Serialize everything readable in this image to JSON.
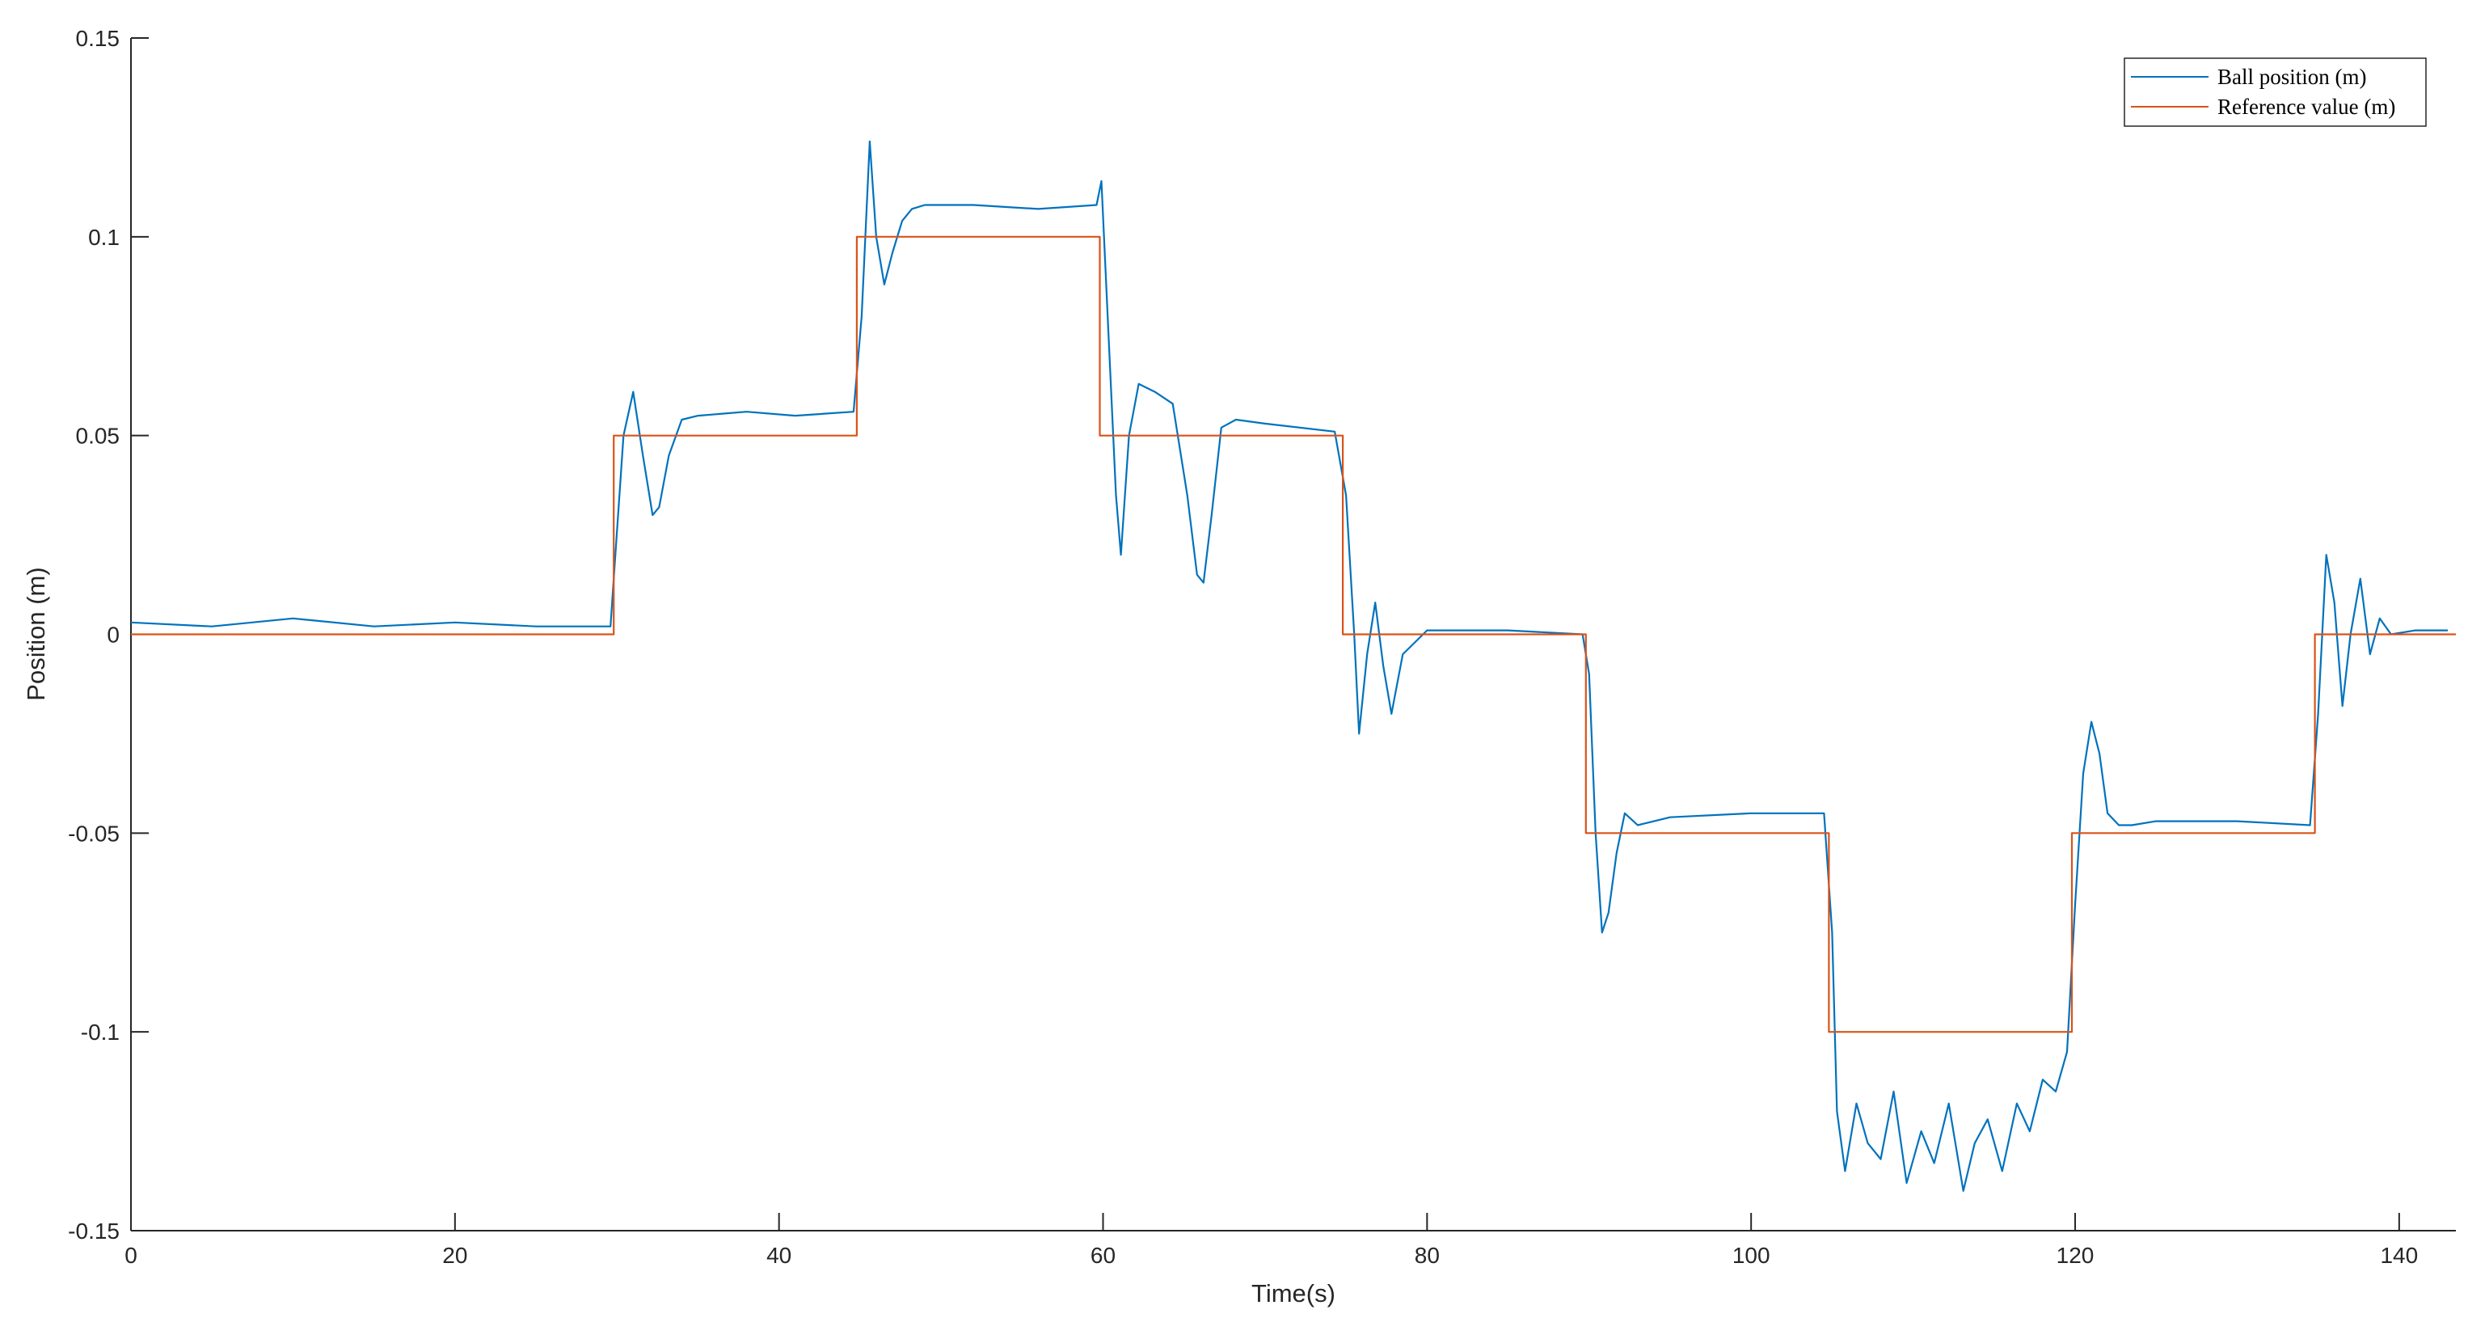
{
  "chart_data": {
    "type": "line",
    "xlabel": "Time(s)",
    "ylabel": "Position (m)",
    "xlim": [
      0,
      143.5
    ],
    "ylim": [
      -0.15,
      0.15
    ],
    "xticks": [
      0,
      20,
      40,
      60,
      80,
      100,
      120,
      140
    ],
    "yticks": [
      -0.15,
      -0.1,
      -0.05,
      0,
      0.05,
      0.1,
      0.15
    ],
    "xtick_labels": [
      "0",
      "20",
      "40",
      "60",
      "80",
      "100",
      "120",
      "140"
    ],
    "ytick_labels": [
      "-0.15",
      "-0.1",
      "-0.05",
      "0",
      "0.05",
      "0.1",
      "0.15"
    ],
    "grid": false,
    "legend_position": "top-right",
    "series": [
      {
        "name": "Ball position (m)",
        "color": "#0072BD",
        "x": [
          0,
          5,
          10,
          15,
          20,
          25,
          29.6,
          30.4,
          31.0,
          31.6,
          32.2,
          32.6,
          33.2,
          34.0,
          35.0,
          38.0,
          41.0,
          44.6,
          45.1,
          45.6,
          46.0,
          46.5,
          47.0,
          47.6,
          48.2,
          49.0,
          52.0,
          56.0,
          59.6,
          59.9,
          60.4,
          60.8,
          61.1,
          61.6,
          62.2,
          63.2,
          64.3,
          65.2,
          65.8,
          66.2,
          66.7,
          67.3,
          68.2,
          70.0,
          74.3,
          75.0,
          75.5,
          75.8,
          76.3,
          76.8,
          77.3,
          77.8,
          78.5,
          80.0,
          85.0,
          89.6,
          90.0,
          90.4,
          90.8,
          91.2,
          91.7,
          92.2,
          93.0,
          95.0,
          100.0,
          104.5,
          105.0,
          105.3,
          105.8,
          106.5,
          107.2,
          108.0,
          108.8,
          109.6,
          110.5,
          111.3,
          112.2,
          113.1,
          113.8,
          114.6,
          115.5,
          116.4,
          117.2,
          118.0,
          118.8,
          119.5,
          120.0,
          120.5,
          121.0,
          121.5,
          122.0,
          122.7,
          123.5,
          125.0,
          130.0,
          134.5,
          135.0,
          135.5,
          136.0,
          136.5,
          137.0,
          137.6,
          138.2,
          138.8,
          139.5,
          141.0,
          143.0
        ],
        "y": [
          0.003,
          0.002,
          0.004,
          0.002,
          0.003,
          0.002,
          0.002,
          0.05,
          0.061,
          0.045,
          0.03,
          0.032,
          0.045,
          0.054,
          0.055,
          0.056,
          0.055,
          0.056,
          0.08,
          0.124,
          0.1,
          0.088,
          0.096,
          0.104,
          0.107,
          0.108,
          0.108,
          0.107,
          0.108,
          0.114,
          0.07,
          0.035,
          0.02,
          0.05,
          0.063,
          0.061,
          0.058,
          0.035,
          0.015,
          0.013,
          0.03,
          0.052,
          0.054,
          0.053,
          0.051,
          0.035,
          0.0,
          -0.025,
          -0.005,
          0.008,
          -0.008,
          -0.02,
          -0.005,
          0.001,
          0.001,
          0.0,
          -0.01,
          -0.05,
          -0.075,
          -0.07,
          -0.055,
          -0.045,
          -0.048,
          -0.046,
          -0.045,
          -0.045,
          -0.075,
          -0.12,
          -0.135,
          -0.118,
          -0.128,
          -0.132,
          -0.115,
          -0.138,
          -0.125,
          -0.133,
          -0.118,
          -0.14,
          -0.128,
          -0.122,
          -0.135,
          -0.118,
          -0.125,
          -0.112,
          -0.115,
          -0.105,
          -0.068,
          -0.035,
          -0.022,
          -0.03,
          -0.045,
          -0.048,
          -0.048,
          -0.047,
          -0.047,
          -0.048,
          -0.02,
          0.02,
          0.008,
          -0.018,
          0.0,
          0.014,
          -0.005,
          0.004,
          0.0,
          0.001,
          0.001
        ]
      },
      {
        "name": "Reference value (m)",
        "color": "#D95319",
        "x": [
          0,
          29.8,
          29.8,
          44.8,
          44.8,
          59.8,
          59.8,
          74.8,
          74.8,
          89.8,
          89.8,
          104.8,
          104.8,
          119.8,
          119.8,
          134.8,
          134.8,
          143.5
        ],
        "y": [
          0,
          0,
          0.05,
          0.05,
          0.1,
          0.1,
          0.05,
          0.05,
          0,
          0,
          -0.05,
          -0.05,
          -0.1,
          -0.1,
          -0.05,
          -0.05,
          0,
          0
        ]
      }
    ]
  }
}
